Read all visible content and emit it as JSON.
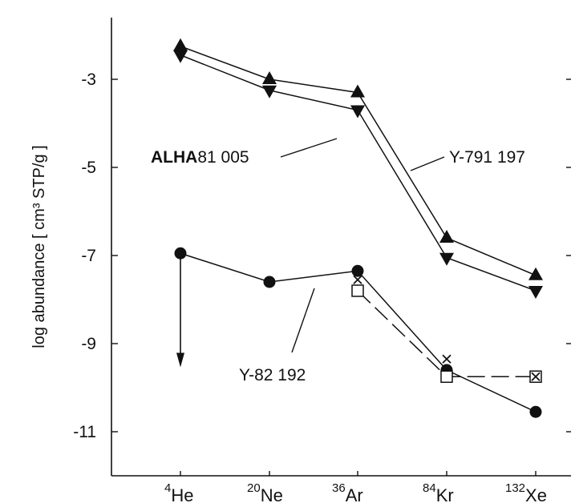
{
  "chart_data": {
    "type": "line",
    "ylabel": "log abundance [ cm³ STP/g ]",
    "categories": [
      {
        "mass": "4",
        "element": "He"
      },
      {
        "mass": "20",
        "element": "Ne"
      },
      {
        "mass": "36",
        "element": "Ar"
      },
      {
        "mass": "84",
        "element": "Kr"
      },
      {
        "mass": "132",
        "element": "Xe"
      }
    ],
    "y_ticks": [
      {
        "value": -3,
        "label": "-3"
      },
      {
        "value": -5,
        "label": "-5"
      },
      {
        "value": -7,
        "label": "-7"
      },
      {
        "value": -9,
        "label": "-9"
      },
      {
        "value": -11,
        "label": "-11"
      }
    ],
    "ylim": [
      -12,
      -1.6
    ],
    "grid": false,
    "series": [
      {
        "marker": "triangle-up",
        "color": "#111111",
        "line": "solid",
        "values": [
          -2.25,
          -3.0,
          -3.3,
          -6.6,
          -7.45
        ]
      },
      {
        "marker": "triangle-down",
        "color": "#111111",
        "line": "solid",
        "values": [
          -2.45,
          -3.25,
          -3.7,
          -7.05,
          -7.8
        ]
      },
      {
        "marker": "circle",
        "color": "#111111",
        "line": "solid",
        "values": [
          -6.95,
          -7.6,
          -7.35,
          -9.6,
          -10.55
        ]
      },
      {
        "marker": "open-square",
        "color": "#111111",
        "line": "dashed",
        "values": [
          null,
          null,
          -7.8,
          -9.75,
          -9.75
        ]
      },
      {
        "marker": "cross",
        "color": "#111111",
        "line": "none",
        "values": [
          null,
          null,
          -7.55,
          -9.35,
          -9.75
        ]
      }
    ],
    "annotations": [
      {
        "bold": "ALHA",
        "text": "81 005"
      },
      {
        "bold": "",
        "text": "Y-791 197"
      },
      {
        "bold": "",
        "text": "Y-82 192"
      }
    ],
    "upper_limit_arrow": {
      "category_index": 0,
      "from": -6.95,
      "to": -9.5
    }
  }
}
